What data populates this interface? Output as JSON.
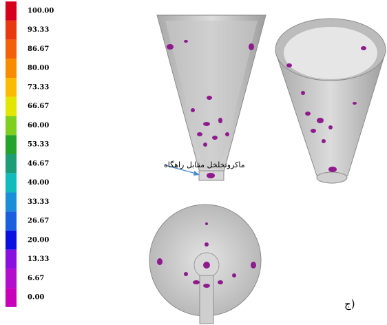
{
  "legend": {
    "entries": [
      {
        "label": "100.00",
        "color": "#d6001c"
      },
      {
        "label": "93.33",
        "color": "#e8380f"
      },
      {
        "label": "86.67",
        "color": "#f2600a"
      },
      {
        "label": "80.00",
        "color": "#f78c00"
      },
      {
        "label": "73.33",
        "color": "#fbbb00"
      },
      {
        "label": "66.67",
        "color": "#e2e600"
      },
      {
        "label": "60.00",
        "color": "#7fcf1f"
      },
      {
        "label": "53.33",
        "color": "#23a32c"
      },
      {
        "label": "46.67",
        "color": "#1b9d78"
      },
      {
        "label": "40.00",
        "color": "#12bcbc"
      },
      {
        "label": "33.33",
        "color": "#1a8ed8"
      },
      {
        "label": "26.67",
        "color": "#195fe0"
      },
      {
        "label": "20.00",
        "color": "#0a10e0"
      },
      {
        "label": "13.33",
        "color": "#8a10e0"
      },
      {
        "label": "6.67",
        "color": "#b20ecb"
      },
      {
        "label": "0.00",
        "color": "#c800b8"
      }
    ]
  },
  "annotation": "ماکروتخلخل مقابل راهگاه",
  "panel_label": "ج)"
}
